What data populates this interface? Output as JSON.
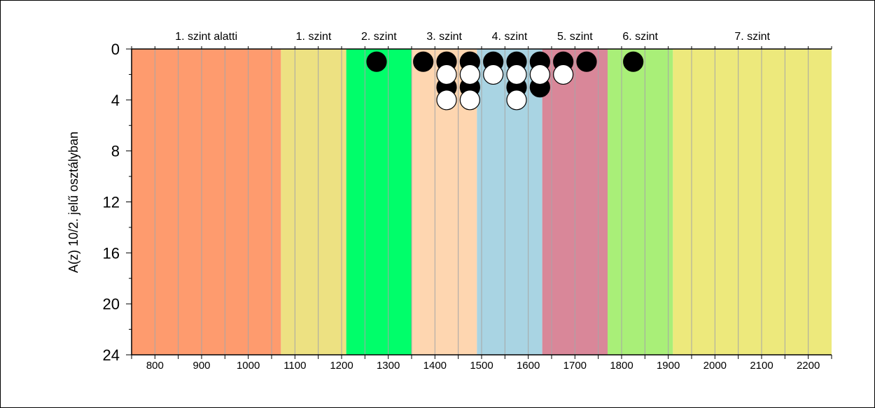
{
  "chart_data": {
    "type": "scatter",
    "ylabel": "A(z) 10/2. jelű osztályban",
    "xlim": [
      750,
      2250
    ],
    "ylim": [
      0,
      24
    ],
    "y_inverted": true,
    "x_ticks": [
      800,
      900,
      1000,
      1100,
      1200,
      1300,
      1400,
      1500,
      1600,
      1700,
      1800,
      1900,
      2000,
      2100,
      2200
    ],
    "y_ticks": [
      0,
      4,
      8,
      12,
      16,
      20,
      24
    ],
    "grid": true,
    "bands": [
      {
        "label": "1. szint alatti",
        "from": 750,
        "to": 1070,
        "color": "#fe9b6e"
      },
      {
        "label": "1. szint",
        "from": 1070,
        "to": 1210,
        "color": "#ede182"
      },
      {
        "label": "2. szint",
        "from": 1210,
        "to": 1350,
        "color": "#00fe6a"
      },
      {
        "label": "3. szint",
        "from": 1350,
        "to": 1490,
        "color": "#fed6b0"
      },
      {
        "label": "4. szint",
        "from": 1490,
        "to": 1630,
        "color": "#a9d4e3"
      },
      {
        "label": "5. szint",
        "from": 1630,
        "to": 1770,
        "color": "#d98799"
      },
      {
        "label": "6. szint",
        "from": 1770,
        "to": 1910,
        "color": "#a9ef78"
      },
      {
        "label": "7. szint",
        "from": 1910,
        "to": 2250,
        "color": "#ede97c"
      }
    ],
    "series": [
      {
        "marker": "black",
        "points": [
          {
            "x": 1275,
            "y": 1
          },
          {
            "x": 1375,
            "y": 1
          },
          {
            "x": 1425,
            "y": 1
          },
          {
            "x": 1475,
            "y": 1
          },
          {
            "x": 1525,
            "y": 1
          },
          {
            "x": 1575,
            "y": 1
          },
          {
            "x": 1625,
            "y": 1
          },
          {
            "x": 1675,
            "y": 1
          },
          {
            "x": 1725,
            "y": 1
          },
          {
            "x": 1825,
            "y": 1
          },
          {
            "x": 1425,
            "y": 3
          },
          {
            "x": 1475,
            "y": 3
          },
          {
            "x": 1575,
            "y": 3
          },
          {
            "x": 1625,
            "y": 3
          }
        ]
      },
      {
        "marker": "white",
        "points": [
          {
            "x": 1425,
            "y": 2
          },
          {
            "x": 1475,
            "y": 2
          },
          {
            "x": 1525,
            "y": 2
          },
          {
            "x": 1575,
            "y": 2
          },
          {
            "x": 1625,
            "y": 2
          },
          {
            "x": 1675,
            "y": 2
          },
          {
            "x": 1425,
            "y": 4
          },
          {
            "x": 1475,
            "y": 4
          },
          {
            "x": 1575,
            "y": 4
          }
        ]
      }
    ]
  }
}
